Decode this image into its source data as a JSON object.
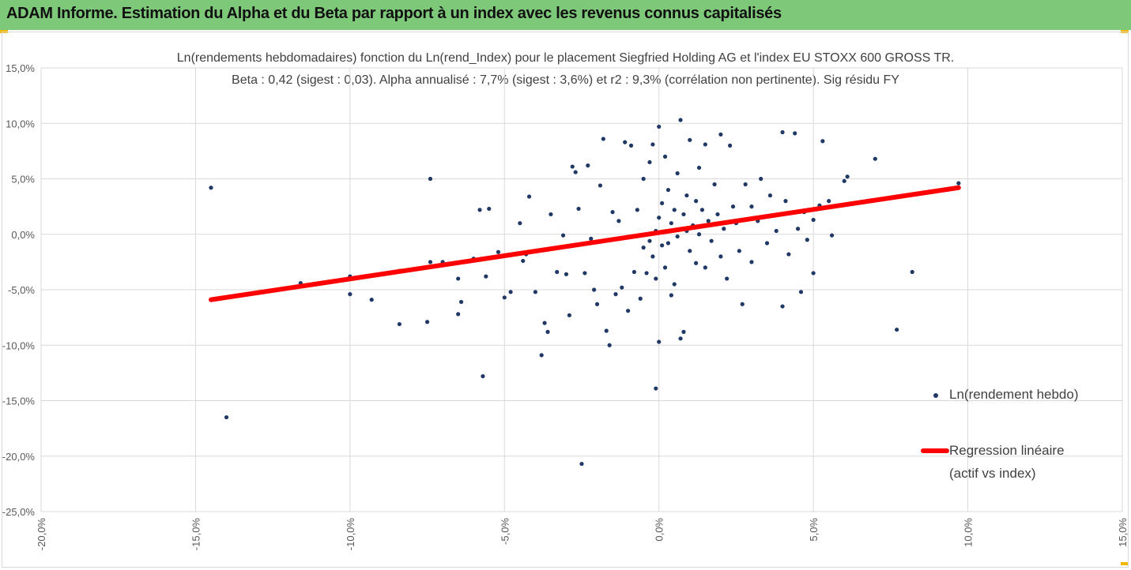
{
  "banner": {
    "title": "ADAM Informe. Estimation du Alpha et du Beta par rapport à un index avec les revenus connus capitalisés"
  },
  "chart_data": {
    "type": "scatter",
    "title": "Ln(rendements hebdomadaires) fonction du Ln(rend_Index) pour le placement Siegfried Holding AG et l'index EU STOXX 600 GROSS TR.",
    "subtitle": "Beta : 0,42 (sigest : 0,03). Alpha annualisé : 7,7% (sigest : 3,6%) et r2 : 9,3% (corrélation non pertinente). Sig résidu FY",
    "xlabel": "",
    "ylabel": "",
    "xlim": [
      -0.2,
      0.15
    ],
    "ylim": [
      -0.25,
      0.15
    ],
    "x_ticks": [
      -0.2,
      -0.15,
      -0.1,
      -0.05,
      0.0,
      0.05,
      0.1,
      0.15
    ],
    "y_ticks": [
      0.15,
      0.1,
      0.05,
      0.0,
      -0.05,
      -0.1,
      -0.15,
      -0.2,
      -0.25
    ],
    "x_tick_labels": [
      "-20,0%",
      "-15,0%",
      "-10,0%",
      "-5,0%",
      "0,0%",
      "5,0%",
      "10,0%",
      "15,0%"
    ],
    "y_tick_labels": [
      "15,0%",
      "10,0%",
      "5,0%",
      "0,0%",
      "-5,0%",
      "-10,0%",
      "-15,0%",
      "-20,0%",
      "-25,0%"
    ],
    "grid": "horizontal and vertical",
    "legend_position": "right",
    "colors": {
      "points": "#1f3864",
      "regression": "#ff0000",
      "banner": "#7ec87a",
      "accent": "#f5b800"
    },
    "series": [
      {
        "name": "Ln(rendement hebdo)",
        "type": "scatter",
        "points": [
          [
            -0.145,
            0.042
          ],
          [
            -0.14,
            -0.165
          ],
          [
            -0.116,
            -0.044
          ],
          [
            -0.1,
            -0.038
          ],
          [
            -0.1,
            -0.054
          ],
          [
            -0.093,
            -0.059
          ],
          [
            -0.084,
            -0.081
          ],
          [
            -0.084,
            -0.033
          ],
          [
            -0.075,
            -0.079
          ],
          [
            -0.074,
            0.05
          ],
          [
            -0.074,
            -0.025
          ],
          [
            -0.07,
            -0.025
          ],
          [
            -0.065,
            -0.04
          ],
          [
            -0.065,
            -0.072
          ],
          [
            -0.064,
            -0.061
          ],
          [
            -0.06,
            -0.022
          ],
          [
            -0.058,
            0.022
          ],
          [
            -0.056,
            -0.038
          ],
          [
            -0.057,
            -0.128
          ],
          [
            -0.055,
            0.023
          ],
          [
            -0.052,
            -0.016
          ],
          [
            -0.05,
            -0.057
          ],
          [
            -0.048,
            -0.052
          ],
          [
            -0.045,
            0.01
          ],
          [
            -0.044,
            -0.024
          ],
          [
            -0.043,
            -0.018
          ],
          [
            -0.042,
            0.034
          ],
          [
            -0.04,
            -0.052
          ],
          [
            -0.038,
            -0.109
          ],
          [
            -0.037,
            -0.08
          ],
          [
            -0.036,
            -0.088
          ],
          [
            -0.035,
            0.018
          ],
          [
            -0.033,
            -0.034
          ],
          [
            -0.031,
            -0.001
          ],
          [
            -0.03,
            -0.036
          ],
          [
            -0.029,
            -0.073
          ],
          [
            -0.028,
            0.061
          ],
          [
            -0.027,
            0.056
          ],
          [
            -0.026,
            0.023
          ],
          [
            -0.025,
            -0.207
          ],
          [
            -0.024,
            -0.035
          ],
          [
            -0.023,
            0.062
          ],
          [
            -0.022,
            -0.004
          ],
          [
            -0.021,
            -0.05
          ],
          [
            -0.02,
            -0.063
          ],
          [
            -0.019,
            0.044
          ],
          [
            -0.018,
            0.086
          ],
          [
            -0.017,
            -0.087
          ],
          [
            -0.016,
            -0.1
          ],
          [
            -0.015,
            0.02
          ],
          [
            -0.014,
            -0.054
          ],
          [
            -0.013,
            0.012
          ],
          [
            -0.012,
            -0.048
          ],
          [
            -0.011,
            0.083
          ],
          [
            -0.01,
            -0.069
          ],
          [
            -0.009,
            0.08
          ],
          [
            -0.008,
            -0.034
          ],
          [
            -0.007,
            0.022
          ],
          [
            -0.006,
            -0.058
          ],
          [
            -0.005,
            0.05
          ],
          [
            -0.005,
            -0.012
          ],
          [
            -0.004,
            -0.035
          ],
          [
            -0.003,
            -0.006
          ],
          [
            -0.003,
            0.065
          ],
          [
            -0.002,
            0.081
          ],
          [
            -0.002,
            -0.02
          ],
          [
            -0.001,
            0.003
          ],
          [
            -0.001,
            -0.04
          ],
          [
            0.0,
            0.015
          ],
          [
            0.0,
            -0.097
          ],
          [
            -0.001,
            -0.139
          ],
          [
            0.0,
            0.097
          ],
          [
            0.001,
            -0.01
          ],
          [
            0.001,
            0.028
          ],
          [
            0.002,
            0.07
          ],
          [
            0.002,
            -0.03
          ],
          [
            0.003,
            0.04
          ],
          [
            0.003,
            -0.008
          ],
          [
            0.004,
            0.01
          ],
          [
            0.004,
            -0.055
          ],
          [
            0.005,
            0.022
          ],
          [
            0.005,
            -0.045
          ],
          [
            0.006,
            0.055
          ],
          [
            0.006,
            -0.002
          ],
          [
            0.007,
            0.103
          ],
          [
            0.007,
            -0.094
          ],
          [
            0.008,
            0.018
          ],
          [
            0.008,
            -0.088
          ],
          [
            0.009,
            0.035
          ],
          [
            0.009,
            0.003
          ],
          [
            0.01,
            -0.015
          ],
          [
            0.01,
            0.085
          ],
          [
            0.011,
            0.008
          ],
          [
            0.012,
            0.03
          ],
          [
            0.012,
            -0.026
          ],
          [
            0.013,
            0.06
          ],
          [
            0.013,
            0.0
          ],
          [
            0.014,
            0.022
          ],
          [
            0.015,
            -0.03
          ],
          [
            0.015,
            0.081
          ],
          [
            0.016,
            0.012
          ],
          [
            0.017,
            -0.006
          ],
          [
            0.018,
            0.045
          ],
          [
            0.019,
            0.018
          ],
          [
            0.02,
            -0.02
          ],
          [
            0.02,
            0.09
          ],
          [
            0.021,
            0.005
          ],
          [
            0.022,
            -0.04
          ],
          [
            0.023,
            0.08
          ],
          [
            0.024,
            0.025
          ],
          [
            0.025,
            0.01
          ],
          [
            0.026,
            -0.015
          ],
          [
            0.027,
            -0.063
          ],
          [
            0.028,
            0.045
          ],
          [
            0.03,
            0.025
          ],
          [
            0.03,
            -0.025
          ],
          [
            0.032,
            0.012
          ],
          [
            0.033,
            0.05
          ],
          [
            0.035,
            -0.008
          ],
          [
            0.036,
            0.035
          ],
          [
            0.038,
            0.003
          ],
          [
            0.04,
            0.092
          ],
          [
            0.04,
            -0.065
          ],
          [
            0.041,
            0.03
          ],
          [
            0.042,
            -0.018
          ],
          [
            0.044,
            0.091
          ],
          [
            0.045,
            0.005
          ],
          [
            0.046,
            -0.052
          ],
          [
            0.047,
            0.02
          ],
          [
            0.048,
            -0.005
          ],
          [
            0.05,
            -0.035
          ],
          [
            0.05,
            0.013
          ],
          [
            0.052,
            0.026
          ],
          [
            0.053,
            0.084
          ],
          [
            0.055,
            0.03
          ],
          [
            0.056,
            -0.001
          ],
          [
            0.06,
            0.048
          ],
          [
            0.061,
            0.052
          ],
          [
            0.07,
            0.068
          ],
          [
            0.077,
            -0.086
          ],
          [
            0.082,
            -0.034
          ],
          [
            0.097,
            0.046
          ]
        ]
      },
      {
        "name": "Regression linéaire\n(actif vs index)",
        "type": "line",
        "points": [
          [
            -0.145,
            -0.059
          ],
          [
            0.097,
            0.042
          ]
        ]
      }
    ]
  },
  "legend": {
    "scatter_label": "Ln(rendement hebdo)",
    "line_label_1": "Regression linéaire",
    "line_label_2": "(actif vs index)"
  }
}
